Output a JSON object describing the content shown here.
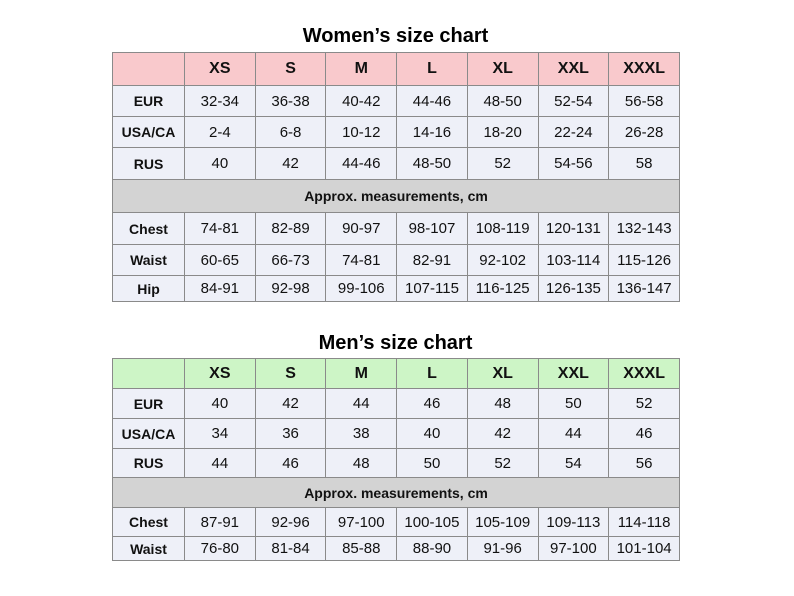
{
  "women": {
    "title": "Women’s size chart",
    "sizes": [
      "XS",
      "S",
      "M",
      "L",
      "XL",
      "XXL",
      "XXXL"
    ],
    "rows": [
      {
        "label": "EUR",
        "values": [
          "32-34",
          "36-38",
          "40-42",
          "44-46",
          "48-50",
          "52-54",
          "56-58"
        ]
      },
      {
        "label": "USA/CA",
        "values": [
          "2-4",
          "6-8",
          "10-12",
          "14-16",
          "18-20",
          "22-24",
          "26-28"
        ]
      },
      {
        "label": "RUS",
        "values": [
          "40",
          "42",
          "44-46",
          "48-50",
          "52",
          "54-56",
          "58"
        ]
      }
    ],
    "note": "Approx. measurements,  cm",
    "measurements": [
      {
        "label": "Chest",
        "values": [
          "74-81",
          "82-89",
          "90-97",
          "98-107",
          "108-119",
          "120-131",
          "132-143"
        ]
      },
      {
        "label": "Waist",
        "values": [
          "60-65",
          "66-73",
          "74-81",
          "82-91",
          "92-102",
          "103-114",
          "115-126"
        ]
      },
      {
        "label": "Hip",
        "values": [
          "84-91",
          "92-98",
          "99-106",
          "107-115",
          "116-125",
          "126-135",
          "136-147"
        ]
      }
    ]
  },
  "men": {
    "title": "Men’s size chart",
    "sizes": [
      "XS",
      "S",
      "M",
      "L",
      "XL",
      "XXL",
      "XXXL"
    ],
    "rows": [
      {
        "label": "EUR",
        "values": [
          "40",
          "42",
          "44",
          "46",
          "48",
          "50",
          "52"
        ]
      },
      {
        "label": "USA/CA",
        "values": [
          "34",
          "36",
          "38",
          "40",
          "42",
          "44",
          "46"
        ]
      },
      {
        "label": "RUS",
        "values": [
          "44",
          "46",
          "48",
          "50",
          "52",
          "54",
          "56"
        ]
      }
    ],
    "note": "Approx. measurements,  cm",
    "measurements": [
      {
        "label": "Chest",
        "values": [
          "87-91",
          "92-96",
          "97-100",
          "100-105",
          "105-109",
          "109-113",
          "114-118"
        ]
      },
      {
        "label": "Waist",
        "values": [
          "76-80",
          "81-84",
          "85-88",
          "88-90",
          "91-96",
          "97-100",
          "101-104"
        ]
      }
    ]
  }
}
